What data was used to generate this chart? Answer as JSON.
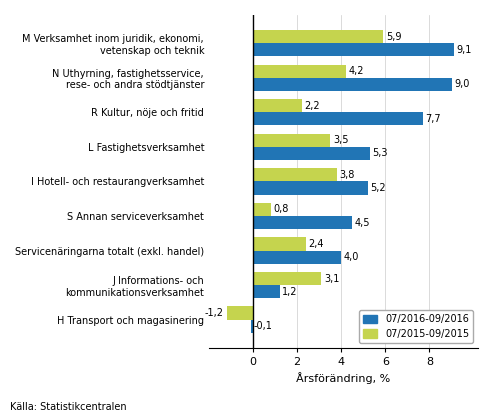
{
  "categories": [
    "M Verksamhet inom juridik, ekonomi,\nvetenskap och teknik",
    "N Uthyrning, fastighetsservice,\nrese- och andra stödtjänster",
    "R Kultur, nöje och fritid",
    "L Fastighetsverksamhet",
    "I Hotell- och restaurangverksamhet",
    "S Annan serviceverksamhet",
    "Servicenäringarna totalt (exkl. handel)",
    "J Informations- och\nkommunikationsverksamhet",
    "H Transport och magasinering"
  ],
  "values_2016": [
    9.1,
    9.0,
    7.7,
    5.3,
    5.2,
    4.5,
    4.0,
    1.2,
    -0.1
  ],
  "values_2015": [
    5.9,
    4.2,
    2.2,
    3.5,
    3.8,
    0.8,
    2.4,
    3.1,
    -1.2
  ],
  "color_2016": "#2175b5",
  "color_2015": "#c5d44e",
  "legend_2016": "07/2016-09/2016",
  "legend_2015": "07/2015-09/2015",
  "xlabel": "Årsförändring, %",
  "source": "Källa: Statistikcentralen",
  "xlim": [
    -2.0,
    10.2
  ],
  "xticks": [
    0,
    2,
    4,
    6,
    8
  ],
  "bar_height": 0.38
}
